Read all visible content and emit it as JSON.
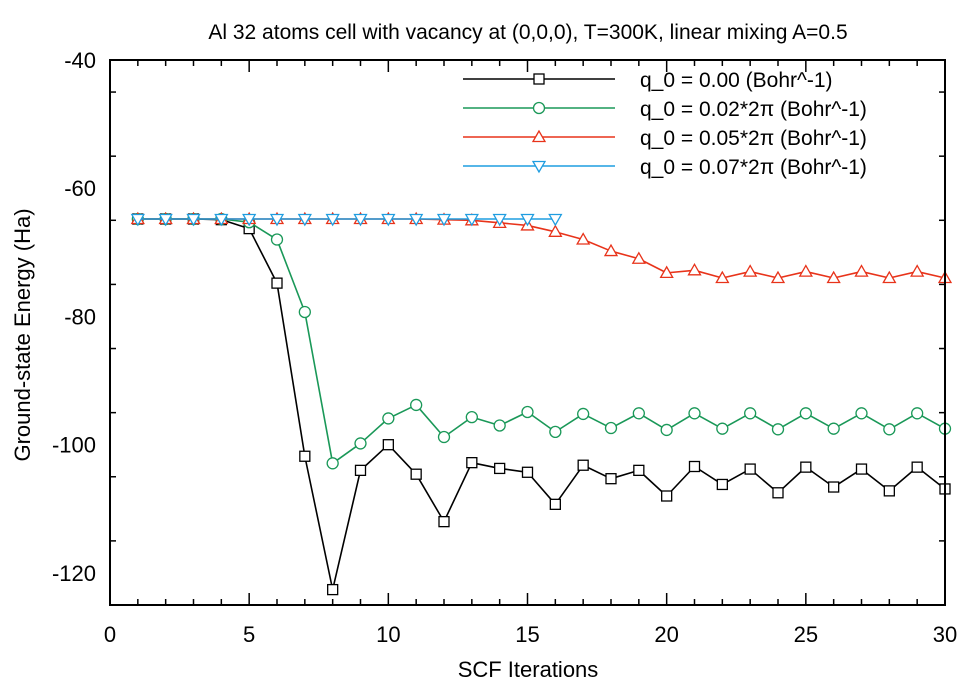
{
  "chart_data": {
    "type": "line",
    "title": "Al 32 atoms cell with vacancy at (0,0,0), T=300K, linear mixing A=0.5",
    "xlabel": "SCF Iterations",
    "ylabel": "Ground-state Energy (Ha)",
    "xlim": [
      0,
      30
    ],
    "ylim": [
      -125,
      -40
    ],
    "xticks": [
      0,
      5,
      10,
      15,
      20,
      25,
      30
    ],
    "yticks": [
      -120,
      -100,
      -80,
      -60,
      -40
    ],
    "grid": false,
    "legend_position": "top-right",
    "series": [
      {
        "name": "q_0 = 0.00 (Bohr^-1)",
        "color": "#000000",
        "marker": "square",
        "x": [
          1,
          2,
          3,
          4,
          5,
          6,
          7,
          8,
          9,
          10,
          11,
          12,
          13,
          14,
          15,
          16,
          17,
          18,
          19,
          20,
          21,
          22,
          23,
          24,
          25,
          26,
          27,
          28,
          29,
          30
        ],
        "y": [
          -64.8,
          -64.8,
          -64.8,
          -64.9,
          -66.3,
          -74.8,
          -101.8,
          -122.6,
          -104.0,
          -100.0,
          -104.6,
          -112.0,
          -102.8,
          -103.7,
          -104.3,
          -109.3,
          -103.2,
          -105.3,
          -104.0,
          -108.0,
          -103.4,
          -106.2,
          -103.8,
          -107.5,
          -103.5,
          -106.6,
          -103.8,
          -107.2,
          -103.5,
          -106.9
        ]
      },
      {
        "name": "q_0 = 0.02*2π (Bohr^-1)",
        "color": "#1a9858",
        "marker": "circle",
        "x": [
          1,
          2,
          3,
          4,
          5,
          6,
          7,
          8,
          9,
          10,
          11,
          12,
          13,
          14,
          15,
          16,
          17,
          18,
          19,
          20,
          21,
          22,
          23,
          24,
          25,
          26,
          27,
          28,
          29,
          30
        ],
        "y": [
          -64.8,
          -64.8,
          -64.8,
          -64.8,
          -65.3,
          -68.0,
          -79.3,
          -102.9,
          -99.8,
          -95.9,
          -93.8,
          -98.8,
          -95.7,
          -97.0,
          -94.9,
          -98.0,
          -95.2,
          -97.4,
          -95.1,
          -97.7,
          -95.1,
          -97.5,
          -95.1,
          -97.6,
          -95.1,
          -97.5,
          -95.1,
          -97.6,
          -95.1,
          -97.5
        ]
      },
      {
        "name": "q_0 = 0.05*2π (Bohr^-1)",
        "color": "#e8331a",
        "marker": "triangle-up",
        "x": [
          1,
          2,
          3,
          4,
          5,
          6,
          7,
          8,
          9,
          10,
          11,
          12,
          13,
          14,
          15,
          16,
          17,
          18,
          19,
          20,
          21,
          22,
          23,
          24,
          25,
          26,
          27,
          28,
          29,
          30
        ],
        "y": [
          -64.8,
          -64.8,
          -64.8,
          -64.8,
          -64.8,
          -64.8,
          -64.8,
          -64.8,
          -64.8,
          -64.8,
          -64.8,
          -64.9,
          -65.0,
          -65.4,
          -65.8,
          -66.8,
          -68.0,
          -69.8,
          -71.0,
          -73.2,
          -72.8,
          -74.0,
          -73.0,
          -74.0,
          -73.0,
          -74.0,
          -73.0,
          -74.0,
          -73.0,
          -74.0
        ]
      },
      {
        "name": "q_0 = 0.07*2π (Bohr^-1)",
        "color": "#1f9de0",
        "marker": "triangle-down",
        "x": [
          1,
          2,
          3,
          4,
          5,
          6,
          7,
          8,
          9,
          10,
          11,
          12,
          13,
          14,
          15,
          16
        ],
        "y": [
          -64.8,
          -64.8,
          -64.8,
          -64.8,
          -64.8,
          -64.8,
          -64.8,
          -64.8,
          -64.8,
          -64.8,
          -64.8,
          -64.8,
          -64.8,
          -64.8,
          -64.8,
          -64.8
        ]
      }
    ]
  }
}
